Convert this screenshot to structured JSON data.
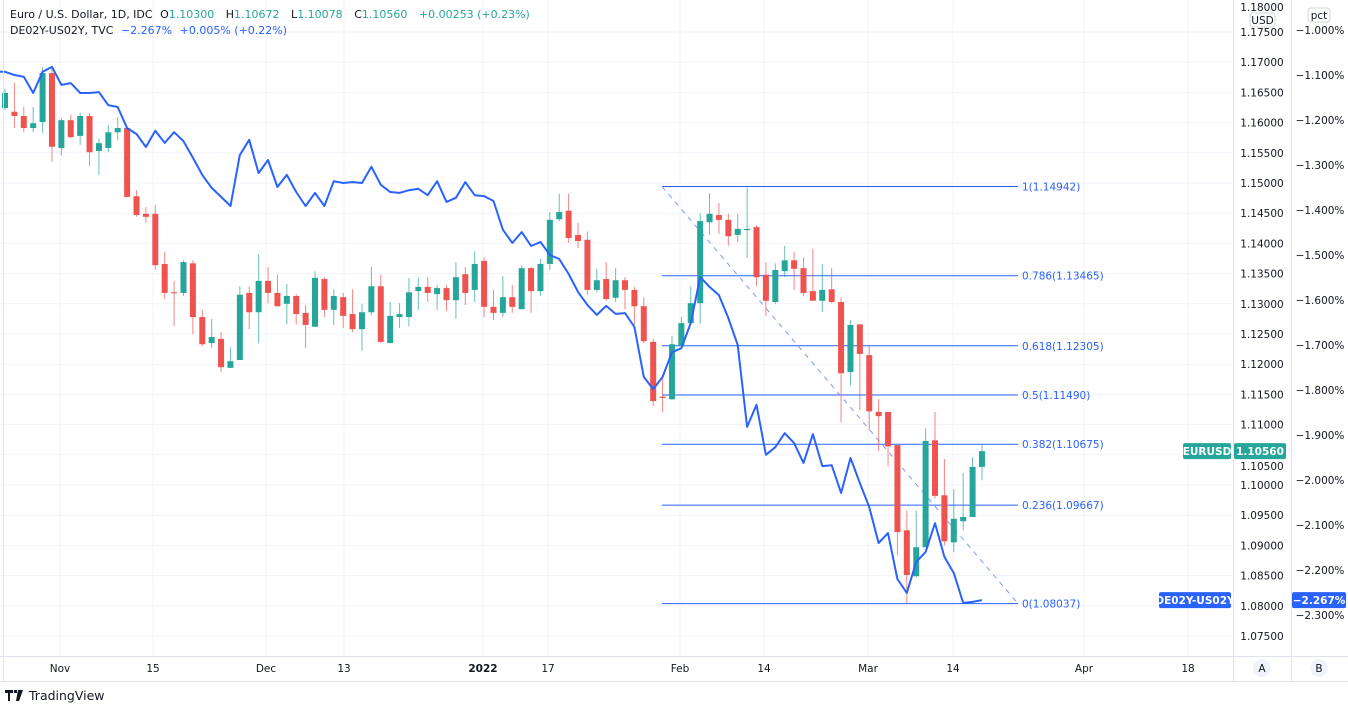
{
  "legend": {
    "main_title": "Euro / U.S. Dollar, 1D, IDC",
    "open_label": "O",
    "open": "1.10300",
    "high_label": "H",
    "high": "1.10672",
    "low_label": "L",
    "low": "1.10078",
    "close_label": "C",
    "close": "1.10560",
    "change": "+0.00253 (+0.23%)",
    "overlay_title": "DE02Y-US02Y, TVC",
    "overlay_value": "−2.267%",
    "overlay_change": "+0.005% (+0.22%)"
  },
  "colors": {
    "up": "#26a69a",
    "down": "#ef5350",
    "overlay": "#2962ff",
    "grid": "#f0f3fa",
    "fib": "#2962ff"
  },
  "price_axis": {
    "unit_badge": "USD",
    "ticks": [
      "1.18000",
      "1.17500",
      "1.17000",
      "1.16500",
      "1.16000",
      "1.15500",
      "1.15000",
      "1.14500",
      "1.14000",
      "1.13500",
      "1.13000",
      "1.12500",
      "1.12000",
      "1.11500",
      "1.11000",
      "1.10500",
      "1.10000",
      "1.09500",
      "1.09000",
      "1.08500",
      "1.08000",
      "1.07500"
    ],
    "last_label": "EURUSD",
    "last_value": "1.10560"
  },
  "pct_axis": {
    "unit_badge": "pct",
    "ticks": [
      "−1.000%",
      "−1.100%",
      "−1.200%",
      "−1.300%",
      "−1.400%",
      "−1.500%",
      "−1.600%",
      "−1.700%",
      "−1.800%",
      "−1.900%",
      "−2.000%",
      "−2.100%",
      "−2.200%",
      "−2.300%"
    ],
    "last_label": "DE02Y-US02Y",
    "last_value": "−2.267%"
  },
  "time_axis": {
    "ticks": [
      "Nov",
      "15",
      "Dec",
      "13",
      "2022",
      "17",
      "Feb",
      "14",
      "Mar",
      "14",
      "Apr",
      "18"
    ]
  },
  "axis_buttons": {
    "auto": "A",
    "scale": "B"
  },
  "brand": {
    "name": "TradingView"
  },
  "chart_data": {
    "type": "candlestick",
    "symbol": "EURUSD",
    "ylim": [
      1.075,
      1.18
    ],
    "candles_ohlc": [
      [
        1.1624,
        1.1656,
        1.1621,
        1.1649
      ],
      [
        1.1618,
        1.1666,
        1.1591,
        1.1611
      ],
      [
        1.1611,
        1.1626,
        1.1584,
        1.1591
      ],
      [
        1.1591,
        1.1626,
        1.1584,
        1.1599
      ],
      [
        1.1601,
        1.1692,
        1.1583,
        1.1682
      ],
      [
        1.1682,
        1.169,
        1.1535,
        1.156
      ],
      [
        1.1558,
        1.1608,
        1.1546,
        1.1604
      ],
      [
        1.1604,
        1.1613,
        1.1574,
        1.1576
      ],
      [
        1.1578,
        1.1616,
        1.1563,
        1.1611
      ],
      [
        1.1611,
        1.1616,
        1.1528,
        1.1551
      ],
      [
        1.1553,
        1.1573,
        1.1513,
        1.1566
      ],
      [
        1.1558,
        1.1596,
        1.1551,
        1.1584
      ],
      [
        1.1584,
        1.1609,
        1.1571,
        1.1591
      ],
      [
        1.1591,
        1.1593,
        1.1477,
        1.1477
      ],
      [
        1.1478,
        1.1488,
        1.1444,
        1.1447
      ],
      [
        1.1449,
        1.146,
        1.1434,
        1.1444
      ],
      [
        1.1449,
        1.1464,
        1.1356,
        1.1364
      ],
      [
        1.1366,
        1.1386,
        1.1308,
        1.1318
      ],
      [
        1.1319,
        1.1338,
        1.1263,
        1.1318
      ],
      [
        1.1318,
        1.1372,
        1.1313,
        1.1369
      ],
      [
        1.1367,
        1.1372,
        1.125,
        1.1278
      ],
      [
        1.1278,
        1.129,
        1.123,
        1.1233
      ],
      [
        1.1235,
        1.1275,
        1.1227,
        1.1245
      ],
      [
        1.1242,
        1.1253,
        1.1187,
        1.1195
      ],
      [
        1.1194,
        1.1228,
        1.1194,
        1.1205
      ],
      [
        1.1207,
        1.1329,
        1.1207,
        1.1315
      ],
      [
        1.1318,
        1.1329,
        1.1258,
        1.1286
      ],
      [
        1.1286,
        1.1382,
        1.1235,
        1.1338
      ],
      [
        1.1338,
        1.1361,
        1.1301,
        1.1318
      ],
      [
        1.1318,
        1.1348,
        1.1295,
        1.1296
      ],
      [
        1.13,
        1.1333,
        1.1266,
        1.1313
      ],
      [
        1.1313,
        1.1316,
        1.1266,
        1.1283
      ],
      [
        1.1285,
        1.1298,
        1.1227,
        1.1265
      ],
      [
        1.1262,
        1.1354,
        1.1262,
        1.1343
      ],
      [
        1.1341,
        1.1344,
        1.1278,
        1.129
      ],
      [
        1.129,
        1.1324,
        1.1265,
        1.1313
      ],
      [
        1.1311,
        1.1318,
        1.126,
        1.128
      ],
      [
        1.1283,
        1.1324,
        1.1253,
        1.1258
      ],
      [
        1.1258,
        1.13,
        1.1222,
        1.1286
      ],
      [
        1.1286,
        1.1361,
        1.1281,
        1.1329
      ],
      [
        1.1329,
        1.1348,
        1.1235,
        1.1237
      ],
      [
        1.1235,
        1.1303,
        1.1235,
        1.128
      ],
      [
        1.1278,
        1.1301,
        1.126,
        1.1283
      ],
      [
        1.1278,
        1.1343,
        1.1263,
        1.1319
      ],
      [
        1.1321,
        1.1343,
        1.129,
        1.1328
      ],
      [
        1.1328,
        1.1344,
        1.1303,
        1.1318
      ],
      [
        1.1316,
        1.1331,
        1.129,
        1.1326
      ],
      [
        1.1326,
        1.1331,
        1.1288,
        1.1306
      ],
      [
        1.1306,
        1.1369,
        1.1275,
        1.1344
      ],
      [
        1.1349,
        1.1361,
        1.1298,
        1.1318
      ],
      [
        1.1323,
        1.1387,
        1.1303,
        1.1366
      ],
      [
        1.1371,
        1.1377,
        1.1278,
        1.1295
      ],
      [
        1.1295,
        1.1323,
        1.1273,
        1.1285
      ],
      [
        1.1285,
        1.1346,
        1.1278,
        1.1311
      ],
      [
        1.1311,
        1.1331,
        1.1285,
        1.1295
      ],
      [
        1.1291,
        1.1364,
        1.1291,
        1.1359
      ],
      [
        1.1359,
        1.1361,
        1.1285,
        1.1321
      ],
      [
        1.1321,
        1.1374,
        1.1313,
        1.1366
      ],
      [
        1.1366,
        1.1452,
        1.1356,
        1.1439
      ],
      [
        1.144,
        1.1482,
        1.1437,
        1.1452
      ],
      [
        1.1454,
        1.1482,
        1.1401,
        1.1409
      ],
      [
        1.1414,
        1.1434,
        1.1392,
        1.1404
      ],
      [
        1.1406,
        1.142,
        1.1315,
        1.1323
      ],
      [
        1.1323,
        1.1358,
        1.1319,
        1.1339
      ],
      [
        1.1341,
        1.1369,
        1.1305,
        1.1308
      ],
      [
        1.131,
        1.1359,
        1.1303,
        1.1339
      ],
      [
        1.1339,
        1.1344,
        1.1291,
        1.1323
      ],
      [
        1.1323,
        1.1328,
        1.1265,
        1.1296
      ],
      [
        1.1296,
        1.1311,
        1.1235,
        1.1238
      ],
      [
        1.1237,
        1.1242,
        1.1131,
        1.1139
      ],
      [
        1.1146,
        1.1179,
        1.1121,
        1.1144
      ],
      [
        1.1142,
        1.1247,
        1.1141,
        1.1233
      ],
      [
        1.123,
        1.1278,
        1.123,
        1.1268
      ],
      [
        1.1268,
        1.1329,
        1.1268,
        1.1301
      ],
      [
        1.1301,
        1.145,
        1.1267,
        1.1437
      ],
      [
        1.1435,
        1.1483,
        1.1414,
        1.1449
      ],
      [
        1.1447,
        1.1467,
        1.1416,
        1.1439
      ],
      [
        1.1439,
        1.1449,
        1.1396,
        1.1412
      ],
      [
        1.1414,
        1.1449,
        1.1402,
        1.1424
      ],
      [
        1.1422,
        1.1493,
        1.1376,
        1.1424
      ],
      [
        1.1427,
        1.143,
        1.1329,
        1.1344
      ],
      [
        1.1348,
        1.1369,
        1.128,
        1.1305
      ],
      [
        1.1303,
        1.1367,
        1.13,
        1.1356
      ],
      [
        1.1354,
        1.1396,
        1.1344,
        1.1372
      ],
      [
        1.1372,
        1.1386,
        1.1323,
        1.1358
      ],
      [
        1.1359,
        1.1377,
        1.1313,
        1.1318
      ],
      [
        1.1321,
        1.1391,
        1.1305,
        1.1305
      ],
      [
        1.1305,
        1.1366,
        1.1286,
        1.1323
      ],
      [
        1.1324,
        1.1359,
        1.1301,
        1.1303
      ],
      [
        1.1303,
        1.1311,
        1.1104,
        1.1185
      ],
      [
        1.1187,
        1.1273,
        1.1165,
        1.1265
      ],
      [
        1.1266,
        1.1266,
        1.1124,
        1.1217
      ],
      [
        1.1215,
        1.1232,
        1.1091,
        1.1122
      ],
      [
        1.1121,
        1.1142,
        1.1056,
        1.1114
      ],
      [
        1.1121,
        1.1121,
        1.1031,
        1.1064
      ],
      [
        1.1066,
        1.1066,
        1.0884,
        1.0922
      ],
      [
        1.0925,
        1.0958,
        1.0804,
        1.0851
      ],
      [
        1.0849,
        1.0958,
        1.0847,
        1.0897
      ],
      [
        1.0897,
        1.1094,
        1.0897,
        1.1073
      ],
      [
        1.1074,
        1.1121,
        1.0978,
        1.0982
      ],
      [
        1.0983,
        1.1043,
        1.09,
        1.0907
      ],
      [
        1.0905,
        1.0993,
        1.0889,
        1.0944
      ],
      [
        1.094,
        1.102,
        1.0925,
        1.0947
      ],
      [
        1.0947,
        1.1046,
        1.0947,
        1.103
      ],
      [
        1.103,
        1.10672,
        1.10078,
        1.1056
      ]
    ],
    "overlay_series": {
      "name": "DE02Y-US02Y",
      "unit": "%",
      "ylim": [
        -2.33,
        -0.94
      ],
      "values": [
        -1.093,
        -1.1,
        -1.104,
        -1.14,
        -1.093,
        -1.082,
        -1.122,
        -1.118,
        -1.14,
        -1.14,
        -1.138,
        -1.167,
        -1.171,
        -1.218,
        -1.231,
        -1.26,
        -1.224,
        -1.251,
        -1.227,
        -1.247,
        -1.284,
        -1.322,
        -1.351,
        -1.371,
        -1.391,
        -1.278,
        -1.244,
        -1.318,
        -1.289,
        -1.349,
        -1.322,
        -1.36,
        -1.391,
        -1.362,
        -1.391,
        -1.336,
        -1.34,
        -1.338,
        -1.34,
        -1.304,
        -1.344,
        -1.36,
        -1.362,
        -1.356,
        -1.353,
        -1.367,
        -1.336,
        -1.382,
        -1.373,
        -1.338,
        -1.367,
        -1.369,
        -1.38,
        -1.444,
        -1.473,
        -1.449,
        -1.48,
        -1.471,
        -1.5,
        -1.509,
        -1.542,
        -1.582,
        -1.611,
        -1.633,
        -1.613,
        -1.631,
        -1.629,
        -1.66,
        -1.771,
        -1.798,
        -1.771,
        -1.716,
        -1.707,
        -1.651,
        -1.549,
        -1.571,
        -1.589,
        -1.64,
        -1.7,
        -1.882,
        -1.833,
        -1.944,
        -1.927,
        -1.896,
        -1.918,
        -1.962,
        -1.898,
        -1.969,
        -1.967,
        -2.029,
        -1.951,
        -2.007,
        -2.06,
        -2.14,
        -2.118,
        -2.22,
        -2.251,
        -2.182,
        -2.16,
        -2.096,
        -2.171,
        -2.207,
        -2.273,
        -2.271,
        -2.267
      ]
    },
    "fibonacci": {
      "levels": [
        {
          "ratio": "1",
          "price": 1.14942,
          "label": "1(1.14942)"
        },
        {
          "ratio": "0.786",
          "price": 1.13465,
          "label": "0.786(1.13465)"
        },
        {
          "ratio": "0.618",
          "price": 1.12305,
          "label": "0.618(1.12305)"
        },
        {
          "ratio": "0.5",
          "price": 1.1149,
          "label": "0.5(1.11490)"
        },
        {
          "ratio": "0.382",
          "price": 1.10675,
          "label": "0.382(1.10675)"
        },
        {
          "ratio": "0.236",
          "price": 1.09667,
          "label": "0.236(1.09667)"
        },
        {
          "ratio": "0",
          "price": 1.08037,
          "label": "0(1.08037)"
        }
      ],
      "trend_line": {
        "from_price": 1.14942,
        "to_price": 1.08037,
        "style": "dashed"
      }
    },
    "grid": true
  }
}
